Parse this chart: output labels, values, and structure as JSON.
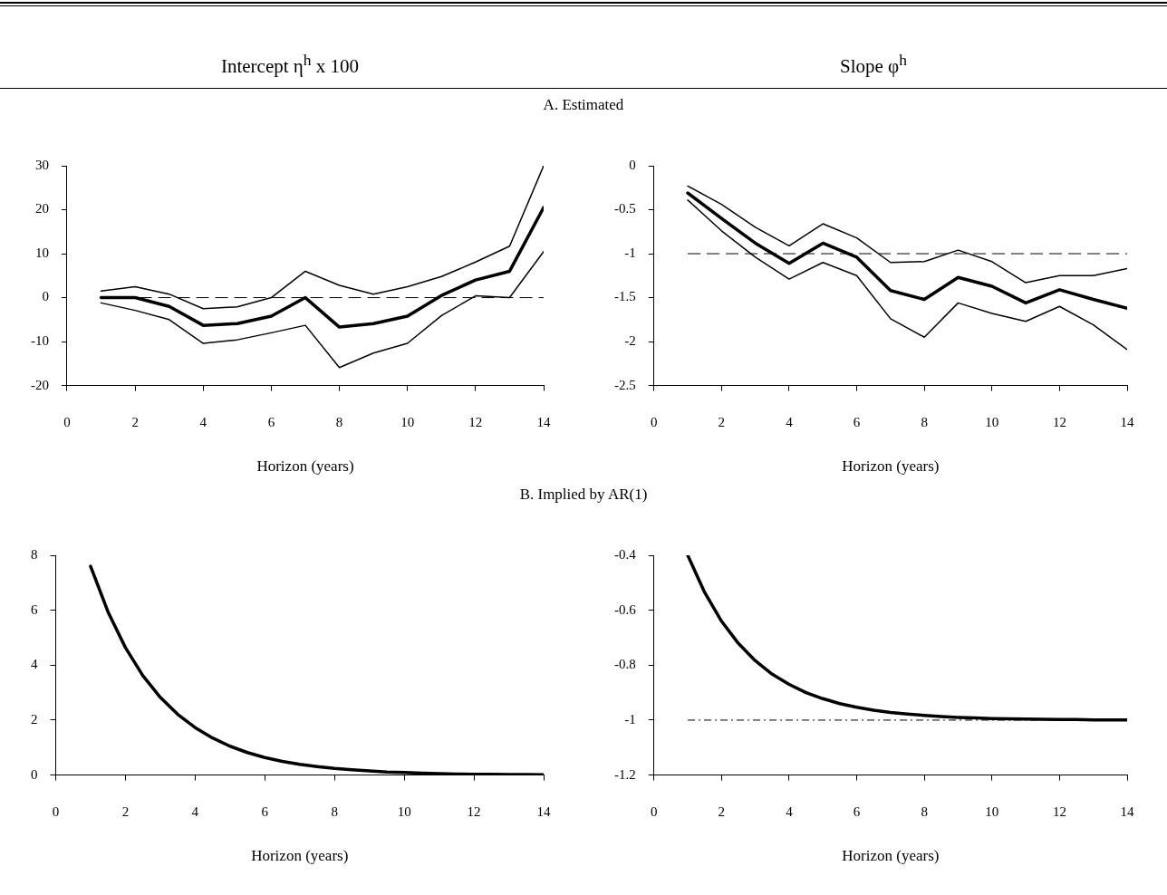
{
  "chart_data": [
    {
      "type": "line",
      "title": "Intercept η$^{h}$ x 100",
      "subtitle": "A. Estimated",
      "xlabel": "Horizon (years)",
      "x": [
        1,
        2,
        3,
        4,
        5,
        6,
        7,
        8,
        9,
        10,
        11,
        12,
        13,
        14
      ],
      "series": [
        {
          "color": "#000000",
          "values": [
            0,
            0,
            -2,
            -6.3,
            -5.9,
            -4.2,
            0,
            -6.7,
            -5.9,
            -4.2,
            0.5,
            4,
            6,
            20.5
          ]
        },
        {
          "color": "#000000",
          "values": [
            1.5,
            2.5,
            0.8,
            -2.5,
            -2.1,
            0,
            6,
            2.8,
            0.8,
            2.5,
            4.8,
            8.1,
            11.7,
            30
          ]
        },
        {
          "color": "#000000",
          "values": [
            -1.2,
            -2.9,
            -5,
            -10.4,
            -9.6,
            -8,
            -6.3,
            -15.9,
            -12.6,
            -10.4,
            -4.1,
            0.4,
            0,
            10.5
          ]
        }
      ],
      "xlim": [
        0,
        14
      ],
      "xticks": [
        0,
        2,
        4,
        6,
        8,
        10,
        12,
        14
      ],
      "ylim": [
        -20,
        30
      ],
      "yticks": [
        -20,
        -10,
        0,
        10,
        20,
        30
      ],
      "ref_lines": [
        {
          "axis": "y",
          "value": 0,
          "color": "#000000",
          "line_style": "dashed"
        }
      ],
      "grid": false,
      "legend": false,
      "marker": "none",
      "line_style": "solid"
    },
    {
      "type": "line",
      "title": "Slope φ$^{h}$",
      "xlabel": "Horizon (years)",
      "x": [
        1,
        2,
        3,
        4,
        5,
        6,
        7,
        8,
        9,
        10,
        11,
        12,
        13,
        14
      ],
      "series": [
        {
          "color": "#000000",
          "values": [
            -0.31,
            -0.6,
            -0.88,
            -1.11,
            -0.88,
            -1.04,
            -1.42,
            -1.52,
            -1.27,
            -1.37,
            -1.56,
            -1.41,
            -1.52,
            -1.62
          ]
        },
        {
          "color": "#000000",
          "values": [
            -0.23,
            -0.44,
            -0.7,
            -0.91,
            -0.66,
            -0.82,
            -1.1,
            -1.09,
            -0.96,
            -1.09,
            -1.33,
            -1.25,
            -1.25,
            -1.17
          ]
        },
        {
          "color": "#000000",
          "values": [
            -0.39,
            -0.74,
            -1.04,
            -1.29,
            -1.1,
            -1.25,
            -1.74,
            -1.95,
            -1.56,
            -1.68,
            -1.77,
            -1.6,
            -1.81,
            -2.09
          ]
        }
      ],
      "xlim": [
        0,
        14
      ],
      "xticks": [
        0,
        2,
        4,
        6,
        8,
        10,
        12,
        14
      ],
      "ylim": [
        -2.5,
        0
      ],
      "yticks": [
        -2.5,
        -2,
        -1.5,
        -1,
        -0.5,
        0
      ],
      "ref_lines": [
        {
          "axis": "y",
          "value": -1,
          "color": "#000000",
          "line_style": "dashed"
        }
      ],
      "grid": false,
      "legend": false,
      "marker": "none",
      "line_style": "solid"
    },
    {
      "type": "line",
      "subtitle": "B. Implied by AR(1)",
      "xlabel": "Horizon (years)",
      "x": [
        1,
        1.5,
        2,
        2.5,
        3,
        3.5,
        4,
        4.5,
        5,
        5.5,
        6,
        6.5,
        7,
        7.5,
        8,
        8.5,
        9,
        9.5,
        10,
        10.5,
        11,
        11.5,
        12,
        12.5,
        13,
        13.5,
        14
      ],
      "series": [
        {
          "color": "#000000",
          "values": [
            7.6,
            5.94,
            4.64,
            3.62,
            2.83,
            2.21,
            1.73,
            1.35,
            1.05,
            0.82,
            0.64,
            0.5,
            0.39,
            0.31,
            0.24,
            0.19,
            0.15,
            0.11,
            0.09,
            0.07,
            0.05,
            0.04,
            0.03,
            0.03,
            0.02,
            0.02,
            0.01
          ]
        }
      ],
      "xlim": [
        0,
        14
      ],
      "xticks": [
        0,
        2,
        4,
        6,
        8,
        10,
        12,
        14
      ],
      "ylim": [
        0,
        8
      ],
      "yticks": [
        0,
        2,
        4,
        6,
        8
      ],
      "grid": false,
      "legend": false,
      "marker": "none",
      "line_style": "solid"
    },
    {
      "type": "line",
      "xlabel": "Horizon (years)",
      "x": [
        1,
        1.5,
        2,
        2.5,
        3,
        3.5,
        4,
        4.5,
        5,
        5.5,
        6,
        6.5,
        7,
        7.5,
        8,
        8.5,
        9,
        9.5,
        10,
        10.5,
        11,
        11.5,
        12,
        12.5,
        13,
        13.5,
        14
      ],
      "series": [
        {
          "color": "#000000",
          "values": [
            -0.4,
            -0.535,
            -0.64,
            -0.721,
            -0.784,
            -0.833,
            -0.87,
            -0.9,
            -0.922,
            -0.94,
            -0.953,
            -0.964,
            -0.972,
            -0.978,
            -0.983,
            -0.987,
            -0.99,
            -0.992,
            -0.994,
            -0.995,
            -0.996,
            -0.997,
            -0.998,
            -0.998,
            -0.999,
            -0.999,
            -0.999
          ]
        }
      ],
      "xlim": [
        0,
        14
      ],
      "xticks": [
        0,
        2,
        4,
        6,
        8,
        10,
        12,
        14
      ],
      "ylim": [
        -1.2,
        -0.4
      ],
      "yticks": [
        -1.2,
        -1,
        -0.8,
        -0.6,
        -0.4
      ],
      "ref_lines": [
        {
          "axis": "y",
          "value": -1,
          "color": "#000000",
          "line_style": "dotted"
        }
      ],
      "grid": false,
      "legend": false,
      "marker": "none",
      "line_style": "solid"
    }
  ]
}
